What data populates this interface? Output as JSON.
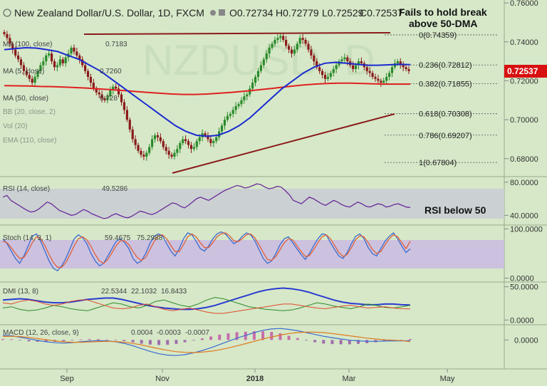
{
  "header": {
    "title": "New Zealand Dollar/U.S. Dollar, 1D, FXCM",
    "ohlc": [
      "O0.72734",
      "H0.72779",
      "L0.72529",
      "C0.72537"
    ]
  },
  "annotations": {
    "fails": "Fails to hold break",
    "fails2": "above 50-DMA",
    "rsi": "RSI below 50"
  },
  "watermark": "NZDUSD, D",
  "indicator_labels": {
    "ma1": "MA (100, close)",
    "ma1_value": "0.7183",
    "ma2": "MA (5, close)",
    "ma2_value": "0.7260",
    "ma3": "MA (50, close)",
    "ma3_value": "0.728",
    "misc1": "BB (20, close, 2)",
    "misc2": "Vol (20)",
    "misc3": "EMA (110, close)",
    "rsi": "RSI (14, close)",
    "rsi_value": "49.5286",
    "stoch": "Stoch (14, 3, 1)",
    "stoch_k": "59.4675",
    "stoch_d": "75.2988",
    "dmi": "DMI (13, 8)",
    "dmi_1": "22.5344",
    "dmi_2": "22.1032",
    "dmi_3": "16.8433",
    "macd": "MACD (12, 26, close, 9)",
    "macd_1": "0.0004",
    "macd_2": "-0.0003",
    "macd_3": "-0.0007"
  },
  "colors": {
    "background": "#d6e8c8",
    "candle_up": "#2a8a2a",
    "candle_down": "#8a1a1a",
    "ma50": "#1a2ad0",
    "ma100": "#e02020",
    "trendline": "#8b1a1a",
    "price_tag": "#d81010",
    "rsi": "#6a2a9a",
    "stoch_k": "#3a6ad0",
    "stoch_d": "#e0603a",
    "stoch_band": "#c8b8e0",
    "rsi_band": "#c8c8d8"
  },
  "chart_data": [
    {
      "type": "candlestick",
      "title": "New Zealand Dollar/U.S. Dollar, 1D, FXCM",
      "price_axis_ticks": [
        "0.76000",
        "0.74000",
        "0.72000",
        "0.70000",
        "0.68000"
      ],
      "ylim": [
        0.6715,
        0.7615
      ],
      "x_ticks": [
        "Sep",
        "Nov",
        "2018",
        "Mar",
        "May"
      ],
      "last_price": "0.72537",
      "fib_levels": [
        {
          "label": "0(0.74359)",
          "value": 0.74359
        },
        {
          "label": "0.236(0.72812)",
          "value": 0.72812
        },
        {
          "label": "0.382(0.71855)",
          "value": 0.71855
        },
        {
          "label": "0.618(0.70308)",
          "value": 0.70308
        },
        {
          "label": "0.786(0.69207)",
          "value": 0.69207
        },
        {
          "label": "1(0.67804)",
          "value": 0.67804
        }
      ],
      "series": [
        {
          "name": "Price",
          "type": "candlestick",
          "close": [
            0.744,
            0.742,
            0.739,
            0.736,
            0.733,
            0.731,
            0.728,
            0.725,
            0.723,
            0.721,
            0.719,
            0.722,
            0.725,
            0.728,
            0.73,
            0.733,
            0.734,
            0.73,
            0.727,
            0.728,
            0.731,
            0.729,
            0.732,
            0.734,
            0.737,
            0.735,
            0.733,
            0.731,
            0.728,
            0.725,
            0.722,
            0.719,
            0.716,
            0.714,
            0.713,
            0.711,
            0.71,
            0.712,
            0.715,
            0.717,
            0.716,
            0.713,
            0.709,
            0.705,
            0.7,
            0.695,
            0.69,
            0.687,
            0.684,
            0.682,
            0.681,
            0.683,
            0.686,
            0.69,
            0.692,
            0.691,
            0.689,
            0.686,
            0.684,
            0.682,
            0.681,
            0.683,
            0.685,
            0.688,
            0.69,
            0.689,
            0.687,
            0.685,
            0.686,
            0.689,
            0.691,
            0.693,
            0.692,
            0.69,
            0.688,
            0.689,
            0.691,
            0.694,
            0.697,
            0.7,
            0.702,
            0.703,
            0.705,
            0.707,
            0.708,
            0.71,
            0.712,
            0.713,
            0.716,
            0.719,
            0.722,
            0.725,
            0.728,
            0.731,
            0.734,
            0.737,
            0.739,
            0.741,
            0.742,
            0.743,
            0.741,
            0.738,
            0.736,
            0.734,
            0.736,
            0.739,
            0.742,
            0.741,
            0.739,
            0.736,
            0.733,
            0.73,
            0.727,
            0.725,
            0.723,
            0.721,
            0.722,
            0.724,
            0.726,
            0.728,
            0.73,
            0.731,
            0.732,
            0.73,
            0.728,
            0.726,
            0.728,
            0.73,
            0.729,
            0.727,
            0.725,
            0.724,
            0.722,
            0.721,
            0.72,
            0.719,
            0.72,
            0.722,
            0.724,
            0.727,
            0.729,
            0.73,
            0.728,
            0.727,
            0.726,
            0.725
          ]
        },
        {
          "name": "MA (50, close)",
          "type": "line",
          "values": [
            0.736,
            0.7365,
            0.737,
            0.7368,
            0.736,
            0.735,
            0.733,
            0.731,
            0.728,
            0.725,
            0.721,
            0.717,
            0.713,
            0.709,
            0.705,
            0.701,
            0.697,
            0.694,
            0.692,
            0.6915,
            0.692,
            0.694,
            0.697,
            0.701,
            0.706,
            0.711,
            0.716,
            0.72,
            0.724,
            0.727,
            0.729,
            0.7295,
            0.729,
            0.7285,
            0.728,
            0.728,
            0.7282,
            0.7285,
            0.7283
          ]
        },
        {
          "name": "MA (100, close)",
          "type": "line",
          "values": [
            0.7175,
            0.7174,
            0.7173,
            0.7171,
            0.717,
            0.7168,
            0.7165,
            0.7162,
            0.7158,
            0.7154,
            0.715,
            0.7145,
            0.714,
            0.7136,
            0.7132,
            0.713,
            0.713,
            0.7132,
            0.7136,
            0.714,
            0.7146,
            0.7152,
            0.7158,
            0.7165,
            0.7172,
            0.7178,
            0.7183,
            0.7186,
            0.7188,
            0.7188,
            0.7186,
            0.7184,
            0.7183,
            0.7183,
            0.7183
          ]
        }
      ]
    },
    {
      "type": "line",
      "title": "RSI (14, close)",
      "ylim": [
        30,
        85
      ],
      "y_ticks": [
        "80.0000",
        "40.0000"
      ],
      "series": [
        {
          "name": "RSI (14, close)",
          "values": [
            62,
            64,
            58,
            55,
            52,
            49,
            46,
            44,
            45,
            48,
            52,
            56,
            54,
            50,
            46,
            44,
            42,
            40,
            41,
            44,
            47,
            45,
            42,
            40,
            38,
            36,
            37,
            40,
            42,
            40,
            38,
            37,
            39,
            42,
            45,
            44,
            42,
            41,
            43,
            46,
            49,
            52,
            55,
            54,
            51,
            49,
            52,
            56,
            60,
            62,
            60,
            58,
            61,
            64,
            67,
            70,
            72,
            74,
            76,
            75,
            73,
            74,
            76,
            78,
            77,
            74,
            72,
            73,
            75,
            74,
            70,
            65,
            58,
            56,
            54,
            58,
            62,
            60,
            57,
            54,
            52,
            55,
            58,
            56,
            53,
            51,
            50,
            53,
            56,
            54,
            51,
            50,
            52,
            54,
            53,
            50,
            51,
            53,
            54,
            52,
            50,
            49.5
          ]
        }
      ]
    },
    {
      "type": "line",
      "title": "Stoch (14, 3, 1)",
      "ylim": [
        -5,
        105
      ],
      "y_ticks": [
        "100.0000",
        "0.0000"
      ],
      "series": [
        {
          "name": "%K",
          "values": [
            80,
            70,
            55,
            40,
            30,
            45,
            65,
            85,
            90,
            75,
            55,
            35,
            20,
            15,
            25,
            40,
            60,
            80,
            88,
            82,
            70,
            50,
            35,
            25,
            30,
            45,
            60,
            75,
            80,
            72,
            60,
            40,
            30,
            35,
            50,
            70,
            85,
            90,
            86,
            70,
            55,
            45,
            60,
            80,
            92,
            88,
            75,
            60,
            55,
            65,
            80,
            90,
            94,
            90,
            80,
            70,
            75,
            85,
            92,
            88,
            76,
            58,
            40,
            30,
            35,
            50,
            68,
            80,
            84,
            72,
            60,
            48,
            38,
            50,
            66,
            80,
            90,
            88,
            72,
            58,
            45,
            40,
            52,
            70,
            85,
            90,
            80,
            62,
            50,
            45,
            60,
            75,
            85,
            92,
            80,
            65,
            52,
            59.5
          ]
        },
        {
          "name": "%D",
          "values": [
            75,
            72,
            62,
            50,
            40,
            42,
            55,
            72,
            84,
            80,
            66,
            48,
            32,
            22,
            22,
            32,
            48,
            66,
            80,
            84,
            78,
            64,
            48,
            35,
            30,
            38,
            52,
            66,
            76,
            76,
            68,
            54,
            42,
            36,
            42,
            58,
            74,
            86,
            88,
            80,
            66,
            54,
            54,
            68,
            84,
            90,
            84,
            72,
            62,
            62,
            72,
            84,
            90,
            92,
            86,
            76,
            74,
            80,
            88,
            90,
            82,
            68,
            52,
            38,
            36,
            44,
            58,
            72,
            80,
            78,
            66,
            54,
            44,
            46,
            58,
            72,
            84,
            88,
            80,
            66,
            52,
            44,
            48,
            62,
            78,
            86,
            84,
            72,
            58,
            50,
            54,
            68,
            80,
            88,
            84,
            72,
            60,
            75.3
          ]
        }
      ]
    },
    {
      "type": "line",
      "title": "DMI (13, 8)",
      "ylim": [
        -5,
        55
      ],
      "y_ticks": [
        "50.0000",
        "0.0000"
      ],
      "series": [
        {
          "name": "ADX",
          "values": [
            30,
            31,
            32,
            31,
            29,
            27,
            26,
            26,
            27,
            29,
            31,
            32,
            33,
            33,
            31,
            28,
            25,
            22,
            20,
            18,
            17,
            16,
            16,
            17,
            19,
            22,
            26,
            30,
            34,
            38,
            42,
            45,
            47,
            48,
            47,
            45,
            42,
            38,
            34,
            30,
            27,
            25,
            24,
            23,
            23,
            24,
            24,
            23,
            22.5
          ]
        },
        {
          "name": "+DI",
          "values": [
            18,
            20,
            16,
            14,
            15,
            18,
            22,
            20,
            17,
            15,
            14,
            18,
            22,
            26,
            24,
            20,
            18,
            22,
            28,
            30,
            26,
            22,
            20,
            24,
            30,
            34,
            32,
            28,
            24,
            20,
            18,
            16,
            15,
            14,
            15,
            18,
            22,
            26,
            24,
            21,
            19,
            17,
            20,
            24,
            22,
            19,
            18,
            20,
            22.1
          ]
        },
        {
          "name": "-DI",
          "values": [
            26,
            24,
            28,
            30,
            28,
            24,
            22,
            24,
            28,
            30,
            30,
            26,
            22,
            18,
            17,
            18,
            22,
            24,
            20,
            16,
            14,
            16,
            18,
            15,
            12,
            10,
            10,
            12,
            14,
            16,
            18,
            20,
            22,
            24,
            24,
            22,
            20,
            18,
            17,
            19,
            21,
            22,
            20,
            18,
            19,
            20,
            18,
            17,
            16.8
          ]
        }
      ]
    },
    {
      "type": "bar",
      "title": "MACD (12, 26, close, 9)",
      "ylim": [
        -0.012,
        0.006
      ],
      "y_ticks": [
        "0.0000"
      ],
      "series": [
        {
          "name": "MACD",
          "values": [
            0.002,
            0.0018,
            0.0012,
            0.0005,
            -0.0002,
            -0.0008,
            -0.0012,
            -0.0014,
            -0.0012,
            -0.0008,
            -0.0005,
            -0.0003,
            -0.0004,
            -0.0008,
            -0.0015,
            -0.0025,
            -0.0038,
            -0.005,
            -0.006,
            -0.0066,
            -0.0068,
            -0.0064,
            -0.0056,
            -0.0046,
            -0.0034,
            -0.002,
            -0.0006,
            0.0008,
            0.002,
            0.0032,
            0.0042,
            0.0048,
            0.005,
            0.0046,
            0.004,
            0.0032,
            0.0024,
            0.0016,
            0.001,
            0.0004,
            -0.0001,
            -0.0004,
            -0.0006,
            -0.0006,
            -0.0005,
            -0.0004,
            -0.0004,
            -0.0003
          ]
        },
        {
          "name": "Signal",
          "values": [
            0.0015,
            0.0016,
            0.0015,
            0.0011,
            0.0006,
            0.0001,
            -0.0004,
            -0.0008,
            -0.001,
            -0.001,
            -0.0009,
            -0.0007,
            -0.0006,
            -0.0007,
            -0.001,
            -0.0015,
            -0.0022,
            -0.003,
            -0.0038,
            -0.0045,
            -0.0051,
            -0.0054,
            -0.0055,
            -0.0053,
            -0.0049,
            -0.0043,
            -0.0035,
            -0.0026,
            -0.0016,
            -0.0006,
            0.0004,
            0.0013,
            0.0021,
            0.0028,
            0.0032,
            0.0034,
            0.0034,
            0.0032,
            0.0028,
            0.0023,
            0.0018,
            0.0013,
            0.0008,
            0.0004,
            0.0001,
            -0.0001,
            -0.0003,
            -0.0007
          ]
        },
        {
          "name": "Histogram",
          "values": [
            0.0004,
            0.0003,
            -0.0002,
            -0.0006,
            -0.0008,
            -0.0009,
            -0.0008,
            -0.0006,
            -0.0002,
            0.0002,
            0.0004,
            0.0004,
            0.0002,
            -0.0001,
            -0.0005,
            -0.001,
            -0.0016,
            -0.002,
            -0.0022,
            -0.0021,
            -0.0017,
            -0.001,
            -0.0001,
            0.0007,
            0.0015,
            0.0023,
            0.0029,
            0.0034,
            0.0036,
            0.0038,
            0.0038,
            0.0035,
            0.0029,
            0.0018,
            0.0008,
            -0.0002,
            -0.001,
            -0.0016,
            -0.0018,
            -0.0019,
            -0.0019,
            -0.0017,
            -0.0014,
            -0.001,
            -0.0006,
            -0.0003,
            -0.0001,
            0.0004
          ]
        }
      ]
    }
  ]
}
